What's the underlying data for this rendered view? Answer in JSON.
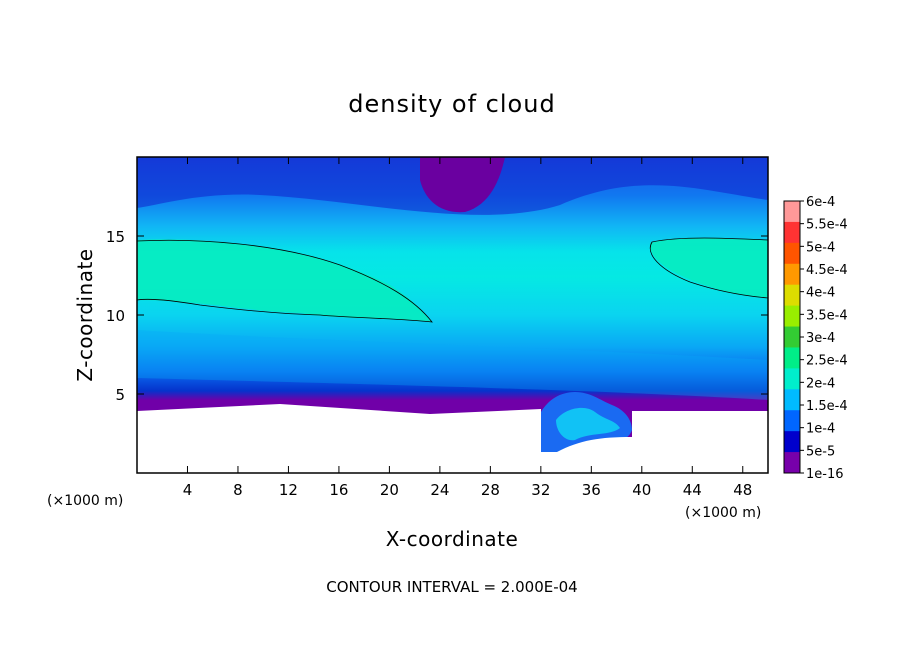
{
  "chart_data": {
    "type": "heatmap",
    "title": "density of cloud",
    "xlabel": "X-coordinate",
    "ylabel": "Z-coordinate",
    "x_unit": "(×1000 m)",
    "y_unit": "(×1000 m)",
    "xlim": [
      0,
      50
    ],
    "ylim": [
      0,
      20
    ],
    "x_ticks": [
      4,
      8,
      12,
      16,
      20,
      24,
      28,
      32,
      36,
      40,
      44,
      48
    ],
    "y_ticks": [
      5,
      10,
      15
    ],
    "colorbar": {
      "levels": [
        "6e-4",
        "5.5e-4",
        "5e-4",
        "4.5e-4",
        "4e-4",
        "3.5e-4",
        "3e-4",
        "2.5e-4",
        "2e-4",
        "1.5e-4",
        "1e-4",
        "5e-5",
        "1e-16"
      ],
      "colors": [
        "#ff9999",
        "#ff3333",
        "#ff5500",
        "#ff9900",
        "#dddd00",
        "#99ee00",
        "#33cc33",
        "#00ee88",
        "#00eecc",
        "#00bbff",
        "#0066ff",
        "#0000cc",
        "#7700aa"
      ]
    },
    "contour_interval_text": "CONTOUR INTERVAL = 2.000E-04",
    "contour_level": 0.0002,
    "terrain_top_km": 4.0
  }
}
